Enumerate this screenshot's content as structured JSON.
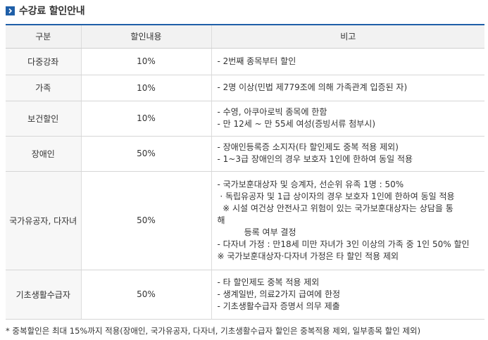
{
  "header": {
    "title": "수강료 할인안내",
    "icon": "chevron-right-icon",
    "accent_color": "#1f5fa8"
  },
  "table": {
    "columns": [
      "구분",
      "할인내용",
      "비고"
    ],
    "rows": [
      {
        "category": "다중강좌",
        "rate": "10%",
        "notes": [
          "- 2번째 종목부터 할인"
        ]
      },
      {
        "category": "가족",
        "rate": "10%",
        "notes": [
          "- 2명 이상(민법 제779조에 의해 가족관계 입증된 자)"
        ]
      },
      {
        "category": "보건할인",
        "rate": "10%",
        "notes": [
          "- 수영, 아쿠아로빅 종목에 한함",
          "- 만 12세 ~ 만 55세 여성(증빙서류 첨부시)"
        ]
      },
      {
        "category": "장애인",
        "rate": "50%",
        "notes": [
          "- 장애인등록증 소지자(타 할인제도 중복 적용 제외)",
          "- 1~3급 장애인의 경우 보호자 1인에 한하여 동일 적용"
        ]
      },
      {
        "category": "국가유공자, 다자녀",
        "rate": "50%",
        "notes": [
          "- 국가보훈대상자 및 승계자, 선순위 유족 1명 : 50%",
          " · 독립유공자 및 1급 상이자의 경우 보호자 1인에 한하여 동일 적용",
          "  ※ 시설 여건상 안전사고 위험이 있는 국가보훈대상자는 상담을 통",
          "해",
          "          등록 여부 결정",
          "- 다자녀 가정 : 만18세 미만 자녀가 3인 이상의 가족 중 1인 50% 할인",
          "※ 국가보훈대상자·다자녀 가정은 타 할인 적용 제외"
        ]
      },
      {
        "category": "기초생활수급자",
        "rate": "50%",
        "notes": [
          "- 타 할인제도 중복 적용 제외",
          "- 생계일반, 의료2가지 급여에 한정",
          "- 기초생활수급자 증명서 의무 제출"
        ]
      }
    ]
  },
  "footnote": "* 중복할인은 최대 15%까지 적용(장애인, 국가유공자, 다자녀, 기초생활수급자 할인은 중복적용 제외, 일부종목 할인 제외)"
}
